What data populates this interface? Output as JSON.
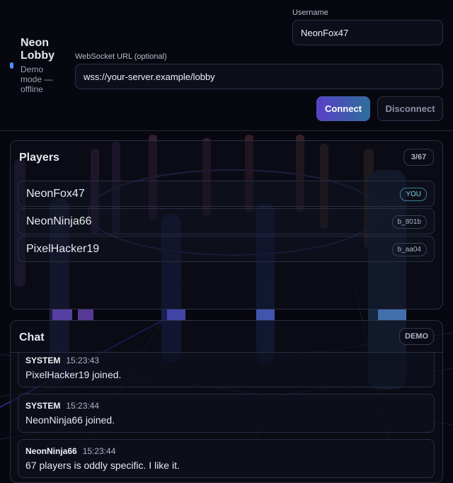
{
  "header": {
    "title": "Neon Lobby",
    "status": "Demo mode — offline"
  },
  "form": {
    "username_label": "Username",
    "username_value": "NeonFox47",
    "url_label": "WebSocket URL (optional)",
    "url_value": "wss://your-server.example/lobby",
    "connect": "Connect",
    "disconnect": "Disconnect"
  },
  "players": {
    "title": "Players",
    "count": "3/67",
    "list": [
      {
        "name": "NeonFox47",
        "badge": "YOU"
      },
      {
        "name": "NeonNinja66",
        "badge": "b_801b"
      },
      {
        "name": "PixelHacker19",
        "badge": "b_aa04"
      }
    ]
  },
  "chat": {
    "title": "Chat",
    "badge": "DEMO",
    "messages": [
      {
        "author": "SYSTEM",
        "time": "15:23:43",
        "text": "PixelHacker19 joined."
      },
      {
        "author": "SYSTEM",
        "time": "15:23:44",
        "text": "NeonNinja66 joined."
      },
      {
        "author": "NeonNinja66",
        "time": "15:23:44",
        "text": "67 players is oddly specific. I like it."
      }
    ]
  }
}
